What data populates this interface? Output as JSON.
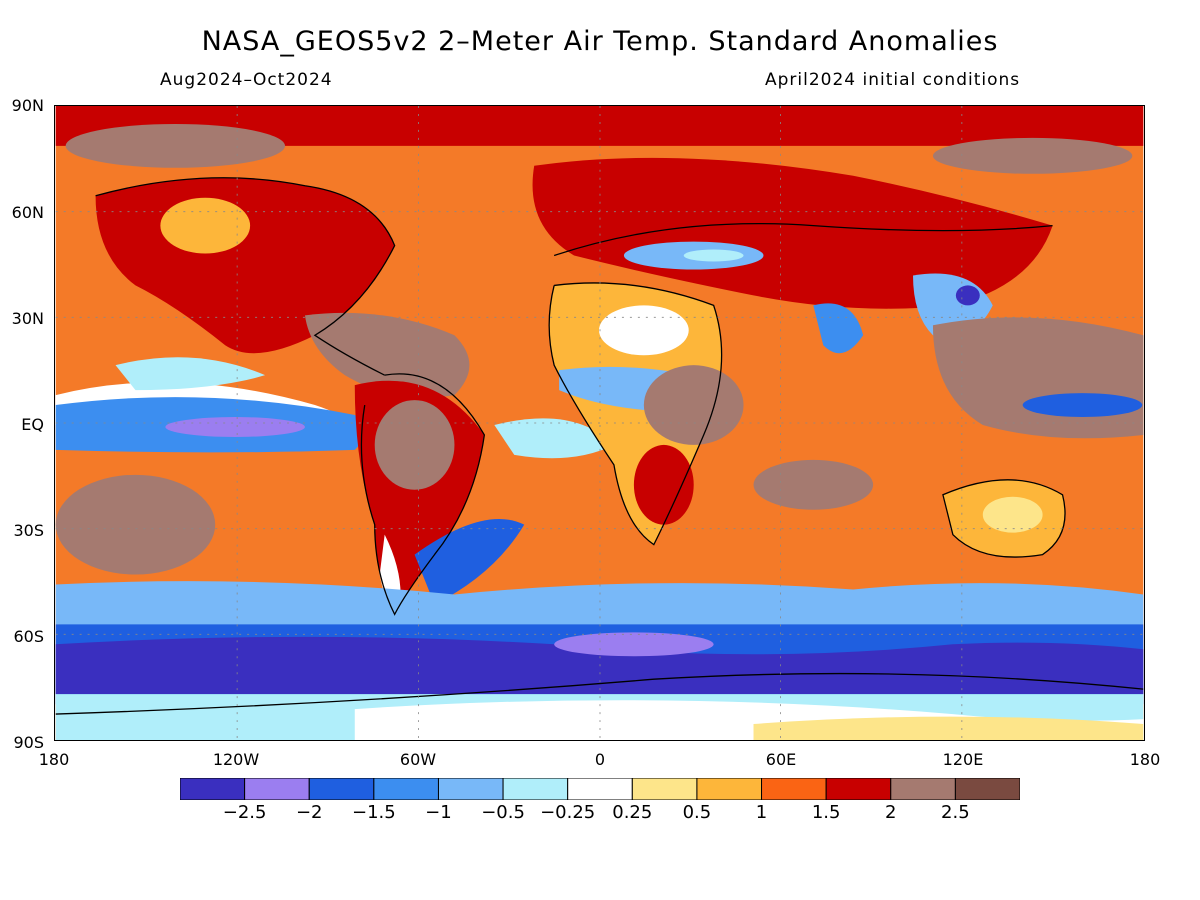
{
  "title": "NASA_GEOS5v2 2–Meter Air Temp. Standard Anomalies",
  "subtitle_left": "Aug2024–Oct2024",
  "subtitle_right": "April2024 initial conditions",
  "lat_labels": [
    "90N",
    "60N",
    "30N",
    "EQ",
    "30S",
    "60S",
    "90S"
  ],
  "lon_labels": [
    "180",
    "120W",
    "60W",
    "0",
    "60E",
    "120E",
    "180"
  ],
  "colorbar": {
    "colors": [
      "#3a2fbf",
      "#9b7ef0",
      "#1f5fe0",
      "#3c8ef0",
      "#78b8f8",
      "#b0eefa",
      "#ffffff",
      "#fde58a",
      "#fdb63a",
      "#fa6414",
      "#c80000",
      "#a57a70",
      "#7a4a40"
    ],
    "labels": [
      "−2.5",
      "−2",
      "−1.5",
      "−1",
      "−0.5",
      "−0.25",
      "0.25",
      "0.5",
      "1",
      "1.5",
      "2",
      "2.5"
    ]
  },
  "background_color": "#f47a28"
}
